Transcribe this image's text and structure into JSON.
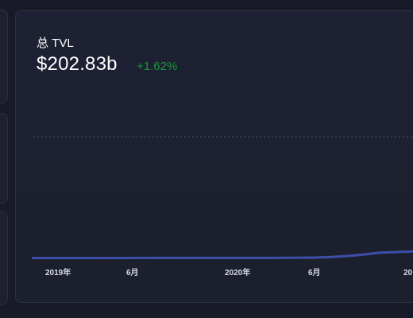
{
  "tvl_card": {
    "label": "总 TVL",
    "value": "$202.83b",
    "change": "+1.62%",
    "change_color": "#1a9a3a"
  },
  "chart_data": {
    "type": "area",
    "title": "",
    "xlabel": "",
    "ylabel": "",
    "grid": "single dashed horizontal line",
    "x_ticks": [
      "2019年",
      "6月",
      "2020年",
      "6月",
      "20"
    ],
    "series": [
      {
        "color": "#3d4fa8",
        "x": [
          "2019-01",
          "2019-03",
          "2019-06",
          "2019-09",
          "2019-12",
          "2020-03",
          "2020-05",
          "2020-06",
          "2020-07",
          "2020-08",
          "2020-09",
          "2020-10",
          "2020-11",
          "2020-12",
          "2021-01"
        ],
        "values": [
          0.6,
          0.6,
          0.7,
          0.8,
          0.8,
          0.8,
          1.2,
          2.0,
          3.5,
          6.0,
          9.5,
          10.5,
          11.5,
          13.0,
          17.0
        ]
      }
    ]
  }
}
